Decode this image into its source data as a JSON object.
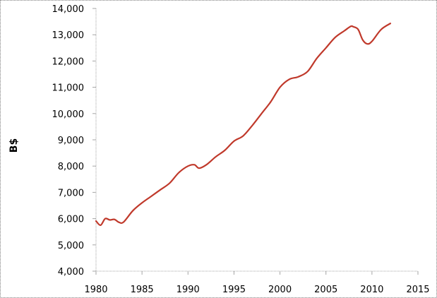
{
  "chart_data": {
    "type": "line",
    "title": "",
    "xlabel": "",
    "ylabel": "B$",
    "xlim": [
      1980,
      2015
    ],
    "ylim": [
      4000,
      14000
    ],
    "grid": false,
    "legend": null,
    "x_ticks": [
      "1980",
      "1985",
      "1990",
      "1995",
      "2000",
      "2005",
      "2010",
      "2015"
    ],
    "y_ticks": [
      "4,000",
      "5,000",
      "6,000",
      "7,000",
      "8,000",
      "9,000",
      "10,000",
      "11,000",
      "12,000",
      "13,000",
      "14,000"
    ],
    "series": [
      {
        "name": "B$",
        "color": "#c0392b",
        "x": [
          1980,
          1980.5,
          1981,
          1981.5,
          1982,
          1982.5,
          1983,
          1984,
          1985,
          1986,
          1987,
          1988,
          1989,
          1990,
          1990.7,
          1991.2,
          1992,
          1993,
          1994,
          1995,
          1996,
          1997,
          1998,
          1999,
          2000,
          2001,
          2002,
          2003,
          2004,
          2005,
          2006,
          2007,
          2007.7,
          2008,
          2008.5,
          2009,
          2009.5,
          2010,
          2011,
          2012
        ],
        "values": [
          5910,
          5750,
          6000,
          5950,
          5970,
          5860,
          5870,
          6300,
          6600,
          6850,
          7100,
          7350,
          7750,
          8000,
          8050,
          7920,
          8050,
          8350,
          8600,
          8950,
          9150,
          9550,
          10000,
          10450,
          11000,
          11300,
          11400,
          11600,
          12100,
          12500,
          12900,
          13150,
          13320,
          13300,
          13200,
          12800,
          12650,
          12750,
          13200,
          13430
        ]
      }
    ]
  }
}
